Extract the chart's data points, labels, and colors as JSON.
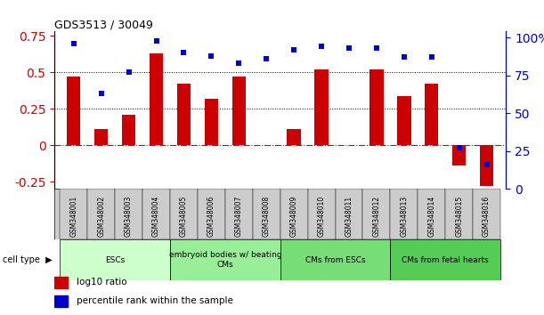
{
  "title": "GDS3513 / 30049",
  "samples": [
    "GSM348001",
    "GSM348002",
    "GSM348003",
    "GSM348004",
    "GSM348005",
    "GSM348006",
    "GSM348007",
    "GSM348008",
    "GSM348009",
    "GSM348010",
    "GSM348011",
    "GSM348012",
    "GSM348013",
    "GSM348014",
    "GSM348015",
    "GSM348016"
  ],
  "log10_ratio": [
    0.47,
    0.11,
    0.21,
    0.63,
    0.42,
    0.32,
    0.47,
    0.0,
    0.11,
    0.52,
    0.0,
    0.52,
    0.34,
    0.42,
    -0.14,
    -0.28
  ],
  "percentile_rank": [
    96,
    63,
    77,
    98,
    90,
    88,
    83,
    86,
    92,
    94,
    93,
    93,
    87,
    87,
    27,
    16
  ],
  "ylim_left": [
    -0.3,
    0.78
  ],
  "ylim_right": [
    0,
    104
  ],
  "yticks_left": [
    -0.25,
    0.0,
    0.25,
    0.5,
    0.75
  ],
  "yticks_right": [
    0,
    25,
    50,
    75,
    100
  ],
  "cell_type_groups": [
    {
      "label": "ESCs",
      "start": 0,
      "end": 3,
      "color": "#ccffcc"
    },
    {
      "label": "embryoid bodies w/ beating\nCMs",
      "start": 4,
      "end": 7,
      "color": "#99ee99"
    },
    {
      "label": "CMs from ESCs",
      "start": 8,
      "end": 11,
      "color": "#77dd77"
    },
    {
      "label": "CMs from fetal hearts",
      "start": 12,
      "end": 15,
      "color": "#55cc55"
    }
  ],
  "bar_color": "#cc0000",
  "dot_color": "#0000cc",
  "hline_color": "#cc0000",
  "dotted_line_color": "#000000",
  "legend_bar_label": "log10 ratio",
  "legend_dot_label": "percentile rank within the sample",
  "tick_color_left": "#cc0000",
  "tick_color_right": "#0000cc",
  "sample_bg_color": "#cccccc",
  "bar_width": 0.5
}
